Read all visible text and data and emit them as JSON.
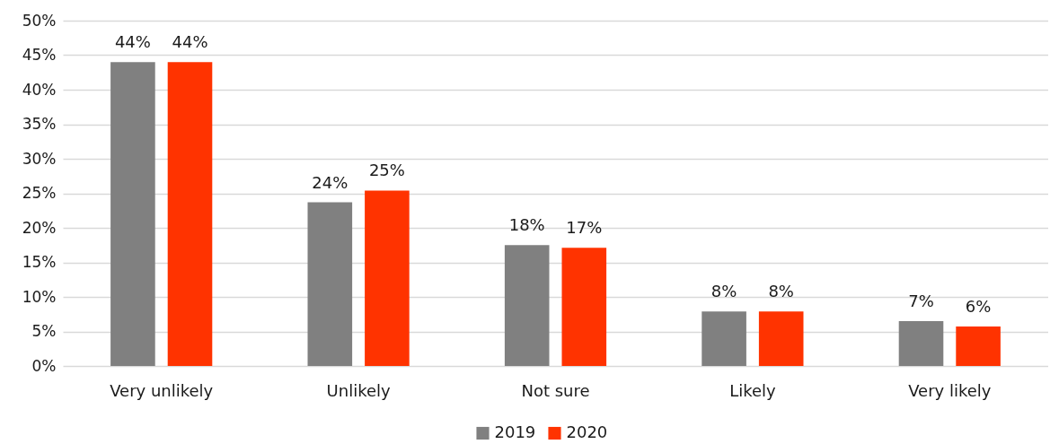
{
  "chart_data": {
    "type": "bar",
    "categories": [
      "Very unlikely",
      "Unlikely",
      "Not sure",
      "Likely",
      "Very likely"
    ],
    "series": [
      {
        "name": "2019",
        "color": "#808080",
        "values": [
          44.0,
          23.7,
          17.5,
          7.9,
          6.5
        ],
        "value_labels": [
          "44%",
          "24%",
          "18%",
          "8%",
          "7%"
        ]
      },
      {
        "name": "2020",
        "color": "#ff3300",
        "values": [
          44.0,
          25.4,
          17.1,
          7.9,
          5.7
        ],
        "value_labels": [
          "44%",
          "25%",
          "17%",
          "8%",
          "6%"
        ]
      }
    ],
    "ylim": [
      0,
      50
    ],
    "yticks": [
      {
        "value": 0,
        "label": "0%"
      },
      {
        "value": 5,
        "label": "5%"
      },
      {
        "value": 10,
        "label": "10%"
      },
      {
        "value": 15,
        "label": "15%"
      },
      {
        "value": 20,
        "label": "20%"
      },
      {
        "value": 25,
        "label": "25%"
      },
      {
        "value": 30,
        "label": "30%"
      },
      {
        "value": 35,
        "label": "35%"
      },
      {
        "value": 40,
        "label": "40%"
      },
      {
        "value": 45,
        "label": "45%"
      },
      {
        "value": 50,
        "label": "50%"
      }
    ],
    "grid": "y",
    "legend": "bottom"
  }
}
